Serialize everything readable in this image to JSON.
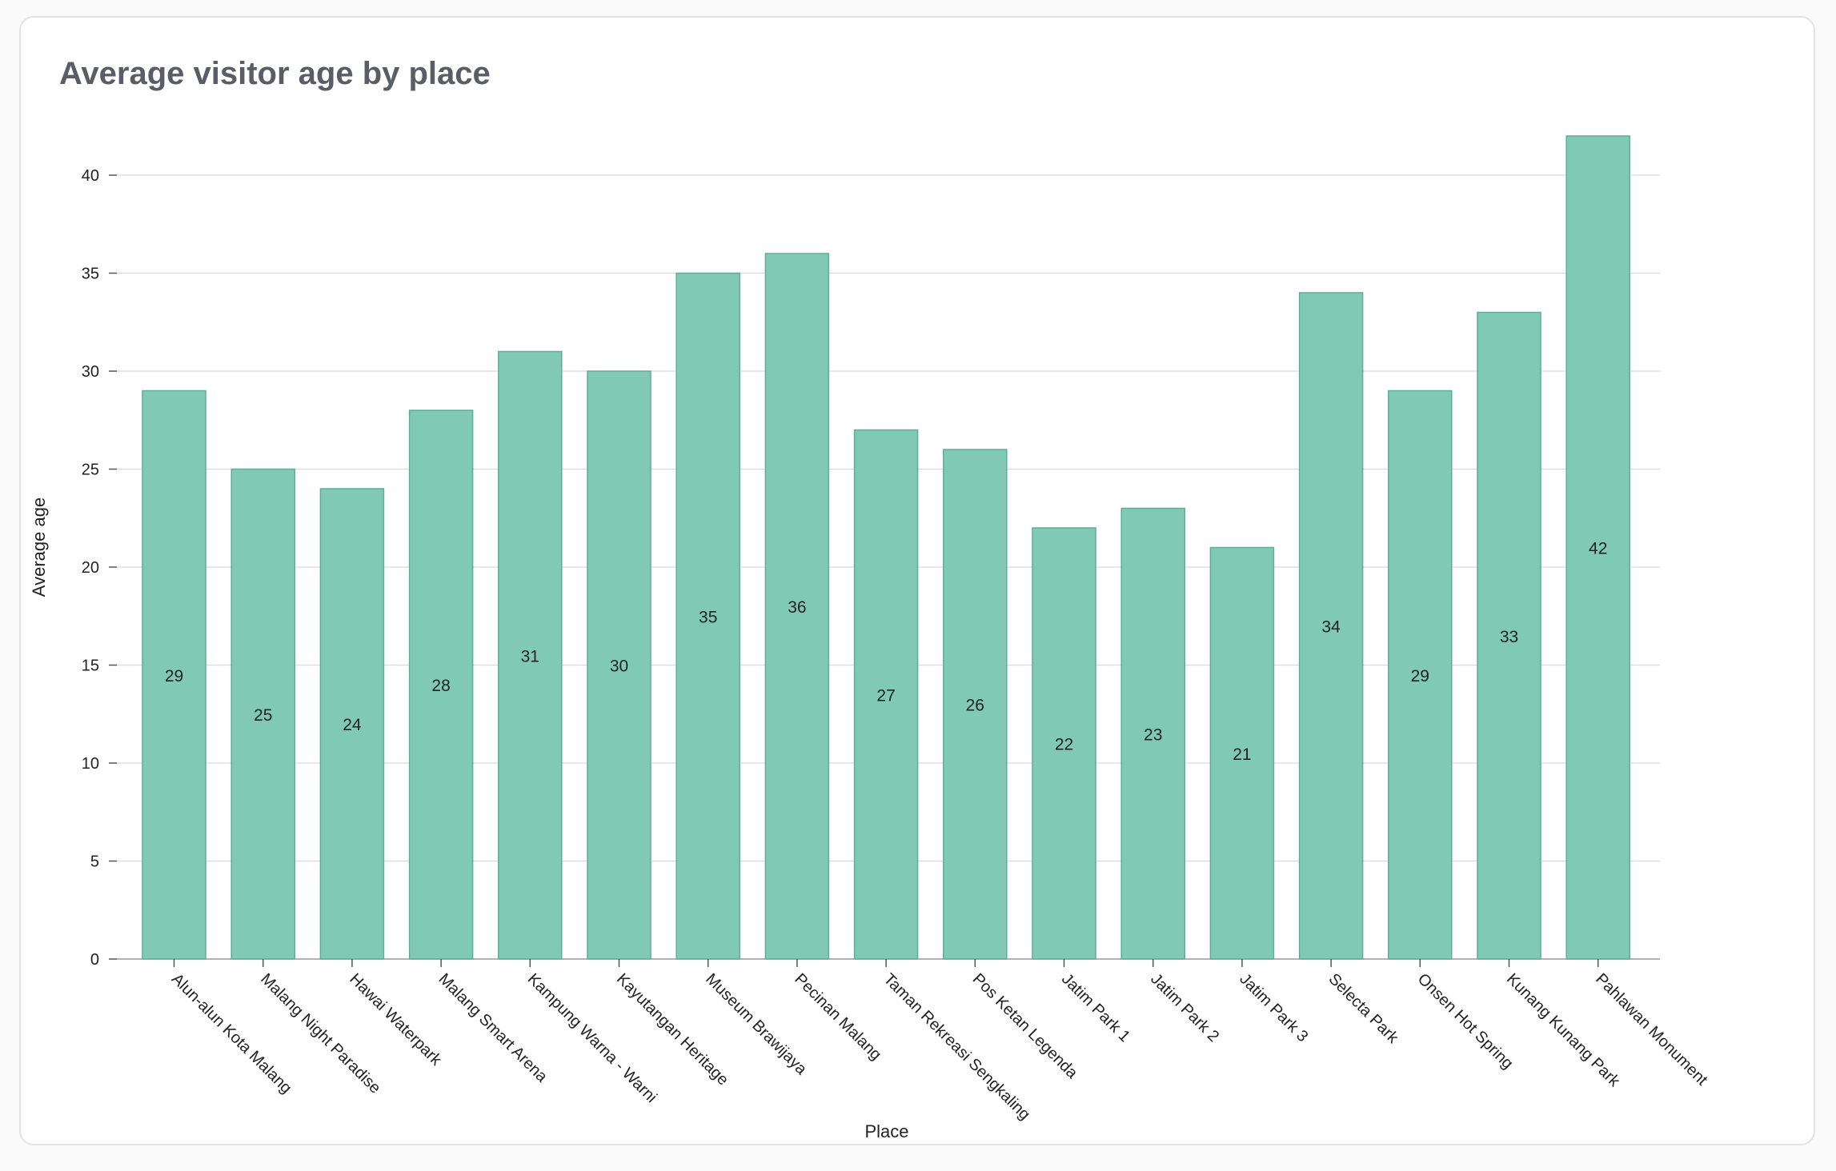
{
  "chart_data": {
    "type": "bar",
    "title": "Average visitor age by place",
    "xlabel": "Place",
    "ylabel": "Average age",
    "ylim": [
      0,
      42
    ],
    "yticks": [
      0,
      5,
      10,
      15,
      20,
      25,
      30,
      35,
      40
    ],
    "grid": true,
    "legend": "none",
    "bar_color": "#80c9b5",
    "bar_stroke": "#5fae98",
    "categories": [
      "Alun-alun Kota Malang",
      "Malang Night Paradise",
      "Hawai Waterpark",
      "Malang Smart Arena",
      "Kampung Warna - Warni",
      "Kayutangan Heritage",
      "Museum Brawijaya",
      "Pecinan Malang",
      "Taman Rekreasi Sengkaling",
      "Pos Ketan Legenda",
      "Jatim Park 1",
      "Jatim Park 2",
      "Jatim Park 3",
      "Selecta Park",
      "Onsen Hot Spring",
      "Kunang Kunang Park",
      "Pahlawan Monument"
    ],
    "values": [
      29,
      25,
      24,
      28,
      31,
      30,
      35,
      36,
      27,
      26,
      22,
      23,
      21,
      34,
      29,
      33,
      42
    ]
  }
}
